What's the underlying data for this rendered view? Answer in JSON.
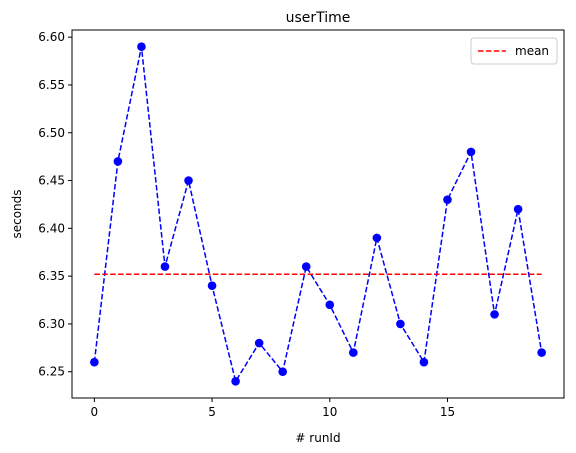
{
  "chart_data": {
    "type": "line",
    "title": "userTime",
    "xlabel": "# runId",
    "ylabel": "seconds",
    "xlim": [
      -0.95,
      19.95
    ],
    "ylim": [
      6.2225,
      6.6075
    ],
    "x_ticks": [
      0,
      5,
      10,
      15
    ],
    "y_ticks": [
      6.25,
      6.3,
      6.35,
      6.4,
      6.45,
      6.5,
      6.55,
      6.6
    ],
    "grid": false,
    "legend_position": "top-right",
    "series": [
      {
        "style": "dashed line with circle markers",
        "color": "#0000ff",
        "x": [
          0,
          1,
          2,
          3,
          4,
          5,
          6,
          7,
          8,
          9,
          10,
          11,
          12,
          13,
          14,
          15,
          16,
          17,
          18,
          19
        ],
        "y": [
          6.26,
          6.47,
          6.59,
          6.36,
          6.45,
          6.34,
          6.24,
          6.28,
          6.25,
          6.36,
          6.32,
          6.27,
          6.39,
          6.3,
          6.26,
          6.43,
          6.48,
          6.31,
          6.42,
          6.27
        ]
      },
      {
        "name": "mean",
        "style": "dashed line",
        "color": "#ff0000",
        "x": [
          0,
          19
        ],
        "y": [
          6.352,
          6.352
        ]
      }
    ]
  }
}
